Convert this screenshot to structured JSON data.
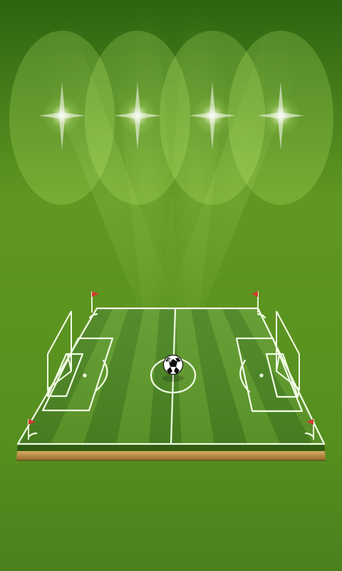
{
  "scene": {
    "subject": "soccer-field-wallpaper",
    "floodlights": 4,
    "colors": {
      "background_top": "#2f6b12",
      "background_mid": "#67a125",
      "background_bottom": "#4f8a1f",
      "pitch_light": "#5f9b2b",
      "pitch_dark": "#4a8421",
      "lines": "#f3ffe7",
      "flag": "#d23b30",
      "platform_wood": "#b88a3e",
      "platform_edge": "#2f5d12"
    }
  }
}
